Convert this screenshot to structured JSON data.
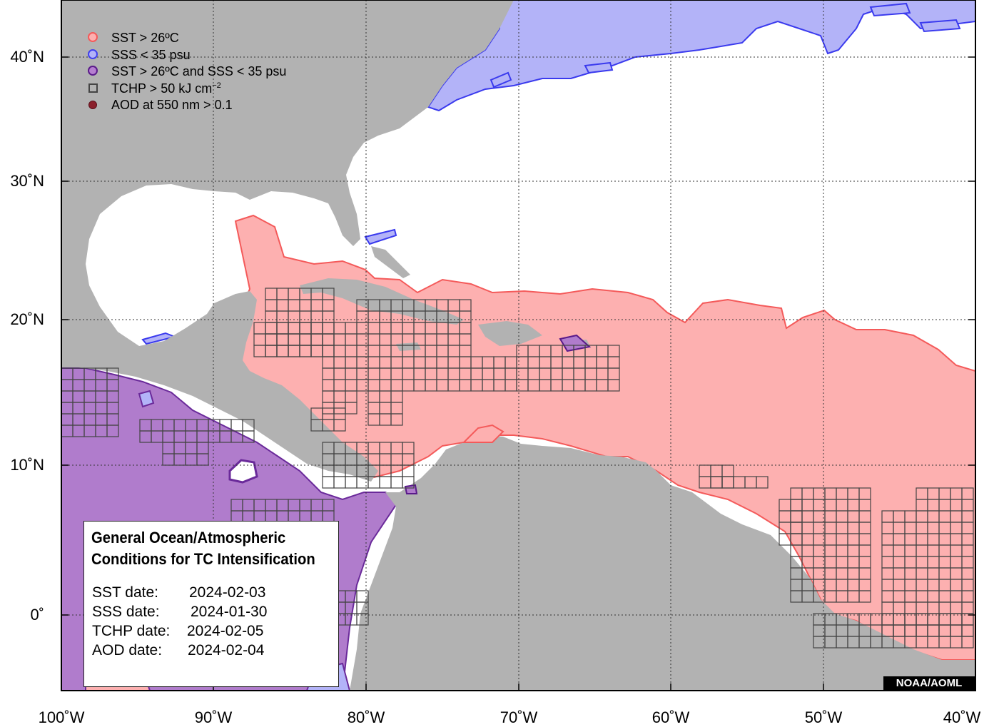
{
  "legend": {
    "items": [
      {
        "label": "SST > 26ºC",
        "swatch": "sst",
        "icon": "circle-icon"
      },
      {
        "label": "SSS < 35 psu",
        "swatch": "sss",
        "icon": "circle-icon"
      },
      {
        "label": "SST > 26ºC and SSS < 35 psu",
        "swatch": "both",
        "icon": "circle-icon"
      },
      {
        "label": "TCHP > 50 kJ cm",
        "sup": "−2",
        "swatch": "tchp",
        "icon": "square-icon"
      },
      {
        "label": "AOD at 550 nm > 0.1",
        "swatch": "aod",
        "icon": "filled-dot-icon"
      }
    ]
  },
  "info_box": {
    "title_line1": "General Ocean/Atmospheric",
    "title_line2": "Conditions for TC Intensification",
    "rows": [
      {
        "key": "SST date:",
        "value": "2024-02-03"
      },
      {
        "key": "SSS date:",
        "value": "2024-01-30"
      },
      {
        "key": "TCHP date:",
        "value": "2024-02-05"
      },
      {
        "key": "AOD date:",
        "value": "2024-02-04"
      }
    ]
  },
  "credit": "NOAA/AOML",
  "axes": {
    "lat_labels": [
      "40˚N",
      "30˚N",
      "20˚N",
      "10˚N",
      "0˚"
    ],
    "lon_labels": [
      "100˚W",
      "90˚W",
      "80˚W",
      "70˚W",
      "60˚W",
      "50˚W",
      "40˚W"
    ]
  },
  "colors": {
    "land": "#b2b2b2",
    "ocean": "#ffffff",
    "sst_fill": "#fdb0b0",
    "sst_line": "#f45a5a",
    "sss_fill": "#b3b3f8",
    "sss_line": "#3a3aee",
    "both_fill": "#b07ccc",
    "both_line": "#5a1a8a",
    "tchp_grid": "#444444"
  }
}
